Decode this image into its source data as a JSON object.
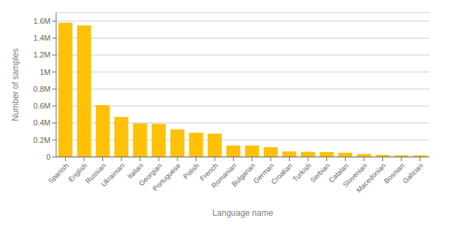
{
  "chart_data": {
    "type": "bar",
    "xlabel": "Language name",
    "ylabel": "Number of samples",
    "categories": [
      "Spanish",
      "English",
      "Russian",
      "Ukrainian",
      "Italian",
      "Georgian",
      "Portuguese",
      "Polish",
      "French",
      "Romanian",
      "Bulgarian",
      "German",
      "Croatian",
      "Turkish",
      "Serbian",
      "Catalan",
      "Slovenian",
      "Macedonian",
      "Bosnian",
      "Galician"
    ],
    "values": [
      1580000,
      1550000,
      610000,
      470000,
      395000,
      390000,
      325000,
      285000,
      275000,
      135000,
      135000,
      115000,
      65000,
      60000,
      58000,
      50000,
      35000,
      25000,
      20000,
      20000
    ],
    "color": "#FFC107",
    "ylim": [
      0,
      1700000
    ],
    "yticks": [
      0,
      {
        "value": 200000,
        "label": "0.2M"
      },
      {
        "value": 400000,
        "label": "0.4M"
      },
      {
        "value": 600000,
        "label": "0.6M"
      },
      {
        "value": 800000,
        "label": "0.8M"
      },
      {
        "value": 1000000,
        "label": "1M"
      },
      {
        "value": 1200000,
        "label": "1.2M"
      },
      {
        "value": 1400000,
        "label": "1.4M"
      },
      {
        "value": 1600000,
        "label": "1.6M"
      }
    ],
    "grid": true
  }
}
